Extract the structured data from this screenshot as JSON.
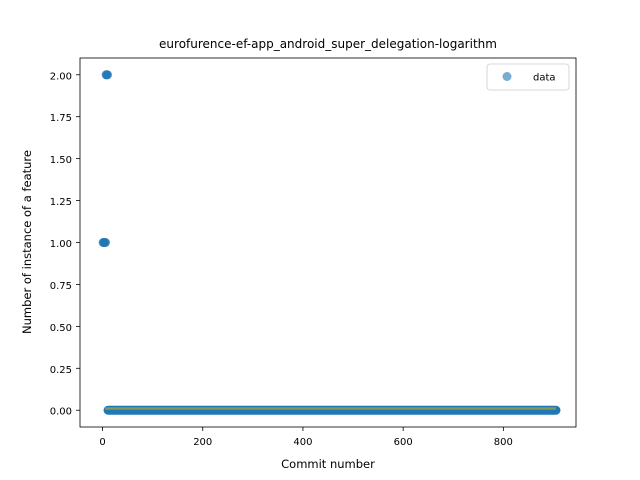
{
  "chart_data": {
    "type": "scatter",
    "title": "eurofurence-ef-app_android_super_delegation-logarithm",
    "xlabel": "Commit number",
    "ylabel": "Number of instance of a feature",
    "xlim": [
      -45,
      945
    ],
    "ylim": [
      -0.1,
      2.1
    ],
    "xticks": [
      0,
      200,
      400,
      600,
      800
    ],
    "yticks": [
      0.0,
      0.25,
      0.5,
      0.75,
      1.0,
      1.25,
      1.5,
      1.75,
      2.0
    ],
    "xtick_labels": [
      "0",
      "200",
      "400",
      "600",
      "800"
    ],
    "ytick_labels": [
      "0.00",
      "0.25",
      "0.50",
      "0.75",
      "1.00",
      "1.25",
      "1.50",
      "1.75",
      "2.00"
    ],
    "legend": {
      "position": "top-right",
      "entries": [
        "data"
      ]
    },
    "colors": {
      "data": "#1f77b4",
      "fit": "#ff7f0e",
      "fit_overlap": "#7f9a5a"
    },
    "series": [
      {
        "name": "data",
        "points": [
          [
            1,
            1
          ],
          [
            2,
            1
          ],
          [
            3,
            1
          ],
          [
            4,
            1
          ],
          [
            5,
            1
          ],
          [
            6,
            1
          ],
          [
            7,
            2
          ],
          [
            8,
            2
          ],
          [
            9,
            2
          ],
          [
            10,
            2
          ]
        ],
        "zero_range": [
          11,
          905
        ]
      },
      {
        "style": "line",
        "x": [
          5,
          905
        ],
        "y": [
          0.01,
          0.01
        ]
      }
    ]
  }
}
